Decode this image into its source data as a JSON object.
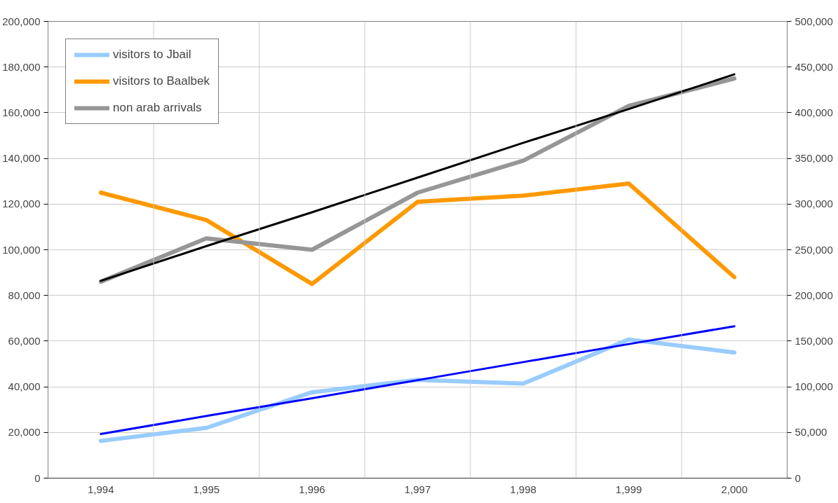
{
  "chart_data": {
    "type": "line",
    "categories": [
      "1,994",
      "1,995",
      "1,996",
      "1,997",
      "1,998",
      "1,999",
      "2,000"
    ],
    "series": [
      {
        "name": "visitors to Jbail",
        "color": "#99ccff",
        "values": [
          16300,
          22000,
          37600,
          43000,
          41400,
          60700,
          55000
        ]
      },
      {
        "name": "visitors to Baalbek",
        "color": "#ff9900",
        "values": [
          125000,
          113000,
          85000,
          121000,
          123700,
          129000,
          88000
        ]
      },
      {
        "name": "non arab arrivals",
        "color": "#969696",
        "axis": "y2",
        "values": [
          215000,
          262500,
          250000,
          312500,
          347500,
          407500,
          437500
        ]
      },
      {
        "color": "#000000",
        "axis": "y2",
        "values": [
          216000,
          254000,
          291000,
          329000,
          367000,
          404000,
          442000
        ]
      },
      {
        "color": "#0000ff",
        "values": [
          19300,
          27200,
          35000,
          42900,
          50800,
          58700,
          66500
        ]
      }
    ],
    "ylim": [
      0,
      200000
    ],
    "yticks": [
      0,
      {
        "value": 20000,
        "label": "20,000"
      },
      {
        "value": 40000,
        "label": "40,000"
      },
      {
        "value": 60000,
        "label": "60,000"
      },
      {
        "value": 80000,
        "label": "80,000"
      },
      {
        "value": 100000,
        "label": "100,000"
      },
      {
        "value": 120000,
        "label": "120,000"
      },
      {
        "value": 140000,
        "label": "140,000"
      },
      {
        "value": 160000,
        "label": "160,000"
      },
      {
        "value": 180000,
        "label": "180,000"
      },
      {
        "value": 200000,
        "label": "200,000"
      }
    ],
    "y2lim": [
      0,
      500000
    ],
    "y2ticks": [
      0,
      {
        "value": 50000,
        "label": "50,000"
      },
      {
        "value": 100000,
        "label": "100,000"
      },
      {
        "value": 150000,
        "label": "150,000"
      },
      {
        "value": 200000,
        "label": "200,000"
      },
      {
        "value": 250000,
        "label": "250,000"
      },
      {
        "value": 300000,
        "label": "300,000"
      },
      {
        "value": 350000,
        "label": "350,000"
      },
      {
        "value": 400000,
        "label": "400,000"
      },
      {
        "value": 450000,
        "label": "450,000"
      },
      {
        "value": 500000,
        "label": "500,000"
      }
    ],
    "grid": true,
    "legend": "top left",
    "marker": "none",
    "line_style": "solid"
  }
}
